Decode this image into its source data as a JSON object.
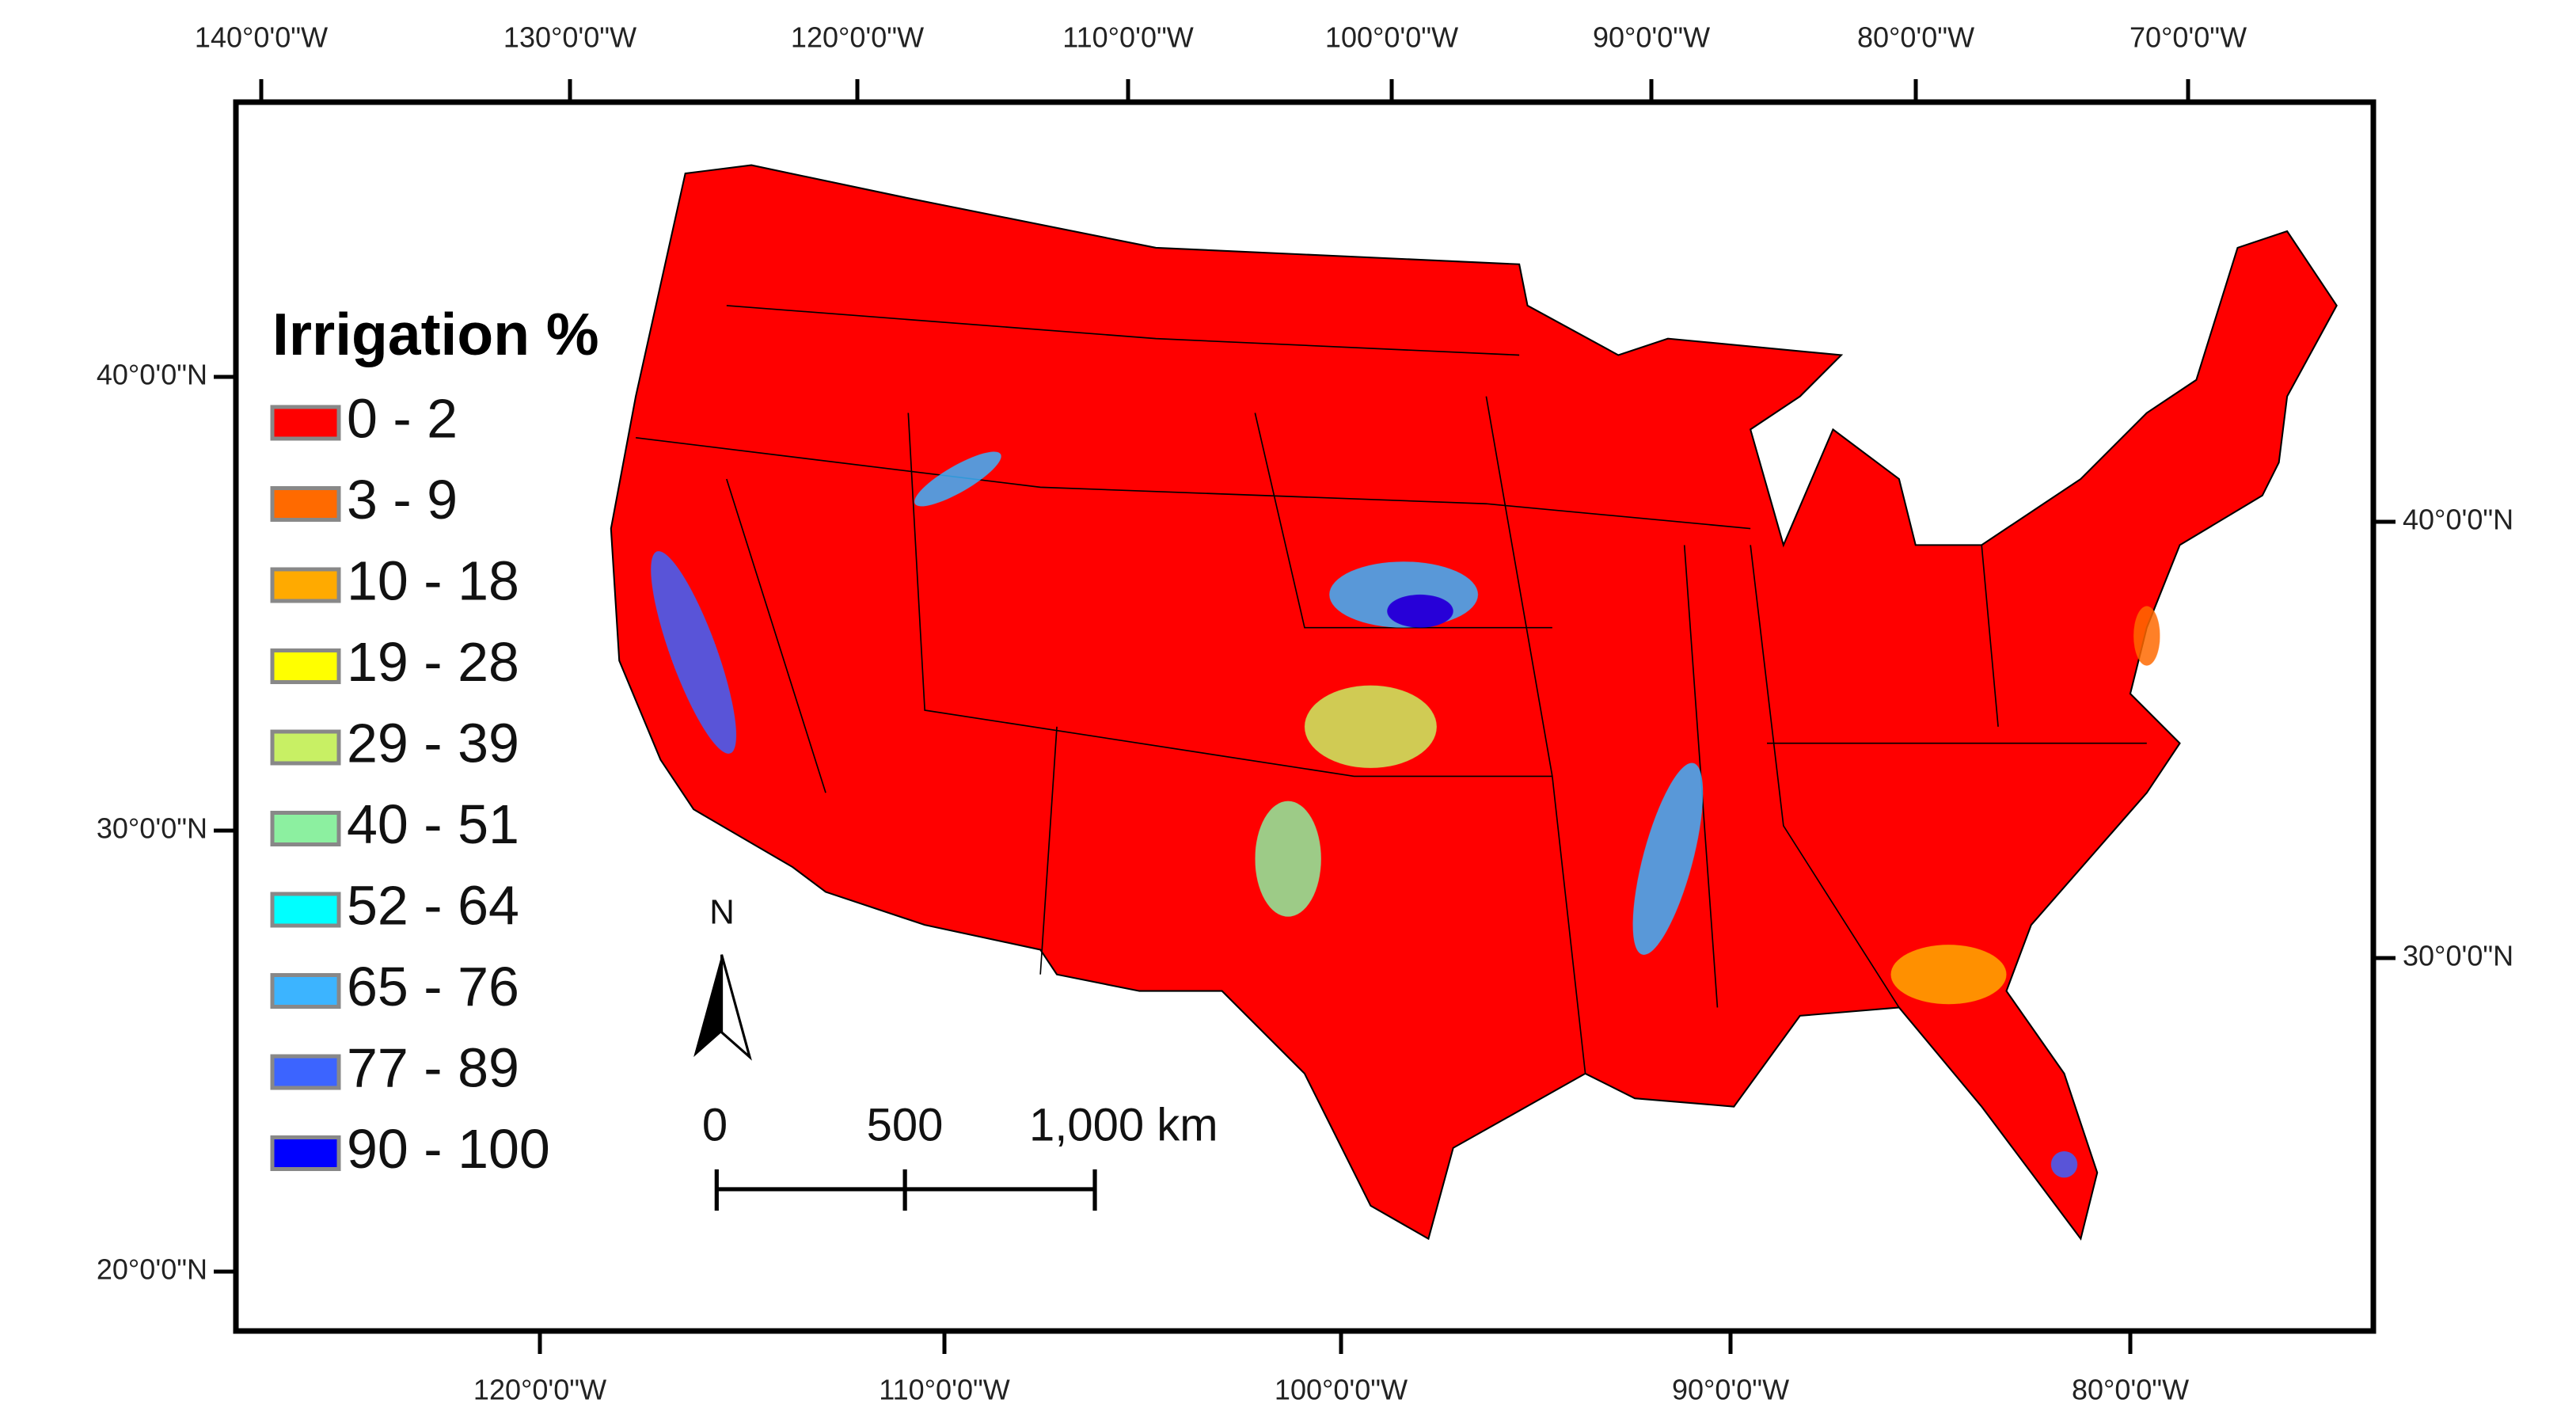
{
  "map": {
    "top_axis_labels": [
      "140°0'0\"W",
      "130°0'0\"W",
      "120°0'0\"W",
      "110°0'0\"W",
      "100°0'0\"W",
      "90°0'0\"W",
      "80°0'0\"W",
      "70°0'0\"W"
    ],
    "bottom_axis_labels": [
      "120°0'0\"W",
      "110°0'0\"W",
      "100°0'0\"W",
      "90°0'0\"W",
      "80°0'0\"W"
    ],
    "left_axis_labels": [
      "40°0'0\"N",
      "30°0'0\"N",
      "20°0'0\"N"
    ],
    "right_axis_labels": [
      "40°0'0\"N",
      "30°0'0\"N"
    ],
    "legend": {
      "title": "Irrigation %",
      "items": [
        {
          "label": "0 - 2",
          "color": "#ff0000"
        },
        {
          "label": "3 - 9",
          "color": "#ff6a00"
        },
        {
          "label": "10 - 18",
          "color": "#ffaa00"
        },
        {
          "label": "19 - 28",
          "color": "#ffff00"
        },
        {
          "label": "29 - 39",
          "color": "#c8f064"
        },
        {
          "label": "40 - 51",
          "color": "#8cf0a0"
        },
        {
          "label": "52 - 64",
          "color": "#00ffff"
        },
        {
          "label": "65 - 76",
          "color": "#3cb4ff"
        },
        {
          "label": "77 - 89",
          "color": "#3c64ff"
        },
        {
          "label": "90 - 100",
          "color": "#0000ff"
        }
      ]
    },
    "north_arrow": "N",
    "scale_bar": [
      "0",
      "500",
      "1,000 km"
    ]
  }
}
